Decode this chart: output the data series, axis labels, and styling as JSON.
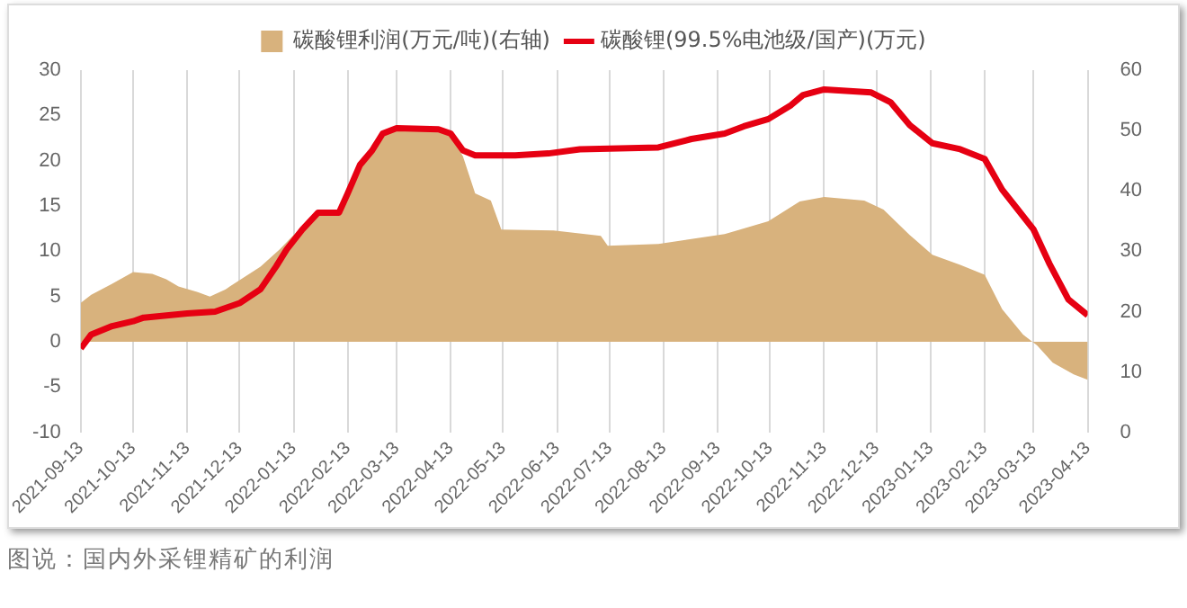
{
  "chart_data": {
    "type": "line",
    "xlim": [
      "2021-09-13",
      "2023-04-13"
    ],
    "xticks": [
      "2021-09-13",
      "2021-10-13",
      "2021-11-13",
      "2021-12-13",
      "2022-01-13",
      "2022-02-13",
      "2022-03-13",
      "2022-04-13",
      "2022-05-13",
      "2022-06-13",
      "2022-07-13",
      "2022-08-13",
      "2022-09-13",
      "2022-10-13",
      "2022-11-13",
      "2022-12-13",
      "2023-01-13",
      "2023-02-13",
      "2023-03-13",
      "2023-04-13"
    ],
    "ylim": [
      -10,
      30
    ],
    "yticks": [
      -10,
      -5,
      0,
      5,
      10,
      15,
      20,
      25,
      30
    ],
    "y2lim": [
      0,
      60
    ],
    "y2ticks": [
      0,
      10,
      20,
      30,
      40,
      50,
      60
    ],
    "grid": "x",
    "legend": "top",
    "series": [
      {
        "name": "碳酸锂利润(万元/吨)(右轴)",
        "type": "area",
        "color": "#d8b27d",
        "x": [
          "2021-09-13",
          "2021-09-19",
          "2021-10-01",
          "2021-10-13",
          "2021-10-24",
          "2021-11-01",
          "2021-11-08",
          "2021-11-19",
          "2021-11-26",
          "2021-12-05",
          "2021-12-13",
          "2021-12-25",
          "2022-01-05",
          "2022-01-16",
          "2022-01-27",
          "2022-02-08",
          "2022-02-13",
          "2022-02-20",
          "2022-02-27",
          "2022-03-05",
          "2022-03-13",
          "2022-04-06",
          "2022-04-13",
          "2022-04-20",
          "2022-04-27",
          "2022-05-06",
          "2022-05-12",
          "2022-06-11",
          "2022-07-08",
          "2022-07-12",
          "2022-08-10",
          "2022-09-17",
          "2022-10-12",
          "2022-10-30",
          "2022-11-13",
          "2022-12-06",
          "2022-12-17",
          "2023-01-01",
          "2023-01-14",
          "2023-01-30",
          "2023-02-13",
          "2023-02-23",
          "2023-03-07",
          "2023-03-15",
          "2023-03-24",
          "2023-04-05",
          "2023-04-13"
        ],
        "values": [
          4.3,
          5.2,
          6.4,
          7.7,
          7.5,
          6.9,
          6.1,
          5.5,
          5.0,
          5.8,
          6.8,
          8.3,
          10.2,
          12.4,
          13.9,
          14.6,
          16.1,
          19.3,
          21.8,
          23.3,
          23.9,
          23.6,
          22.7,
          20.5,
          16.4,
          15.6,
          12.4,
          12.3,
          11.7,
          10.6,
          10.8,
          11.9,
          13.3,
          15.5,
          16.0,
          15.6,
          14.6,
          11.8,
          9.6,
          8.5,
          7.4,
          3.6,
          0.8,
          -0.4,
          -2.3,
          -3.6,
          -4.2
        ]
      },
      {
        "name": "碳酸锂(99.5%电池级/国产)(万元)",
        "type": "line",
        "axis": "y2",
        "color": "#e60012",
        "x": [
          "2021-09-13",
          "2021-09-19",
          "2021-10-01",
          "2021-10-13",
          "2021-10-19",
          "2021-11-13",
          "2021-11-29",
          "2021-12-13",
          "2021-12-25",
          "2022-01-03",
          "2022-01-09",
          "2022-01-18",
          "2022-01-27",
          "2022-02-08",
          "2022-02-13",
          "2022-02-20",
          "2022-02-27",
          "2022-03-05",
          "2022-03-13",
          "2022-04-06",
          "2022-04-13",
          "2022-04-20",
          "2022-04-27",
          "2022-05-20",
          "2022-06-08",
          "2022-06-26",
          "2022-08-10",
          "2022-08-29",
          "2022-09-17",
          "2022-09-28",
          "2022-10-12",
          "2022-10-25",
          "2022-11-01",
          "2022-11-13",
          "2022-12-10",
          "2022-12-21",
          "2023-01-01",
          "2023-01-14",
          "2023-01-30",
          "2023-02-13",
          "2023-02-23",
          "2023-03-04",
          "2023-03-13",
          "2023-03-22",
          "2023-04-02",
          "2023-04-13"
        ],
        "values": [
          13.9,
          16.2,
          17.6,
          18.4,
          19.0,
          19.7,
          20.0,
          21.4,
          23.7,
          27.5,
          30.3,
          33.6,
          36.4,
          36.4,
          39.6,
          44.3,
          46.7,
          49.5,
          50.4,
          50.2,
          49.5,
          46.7,
          45.9,
          45.9,
          46.2,
          46.9,
          47.2,
          48.6,
          49.5,
          50.7,
          51.9,
          54.2,
          55.9,
          56.8,
          56.3,
          54.7,
          50.9,
          47.9,
          46.9,
          45.3,
          40.2,
          36.9,
          33.6,
          28.0,
          22.0,
          19.4
        ]
      }
    ],
    "annotations": [
      "图说：国内外采锂精矿的利润"
    ]
  }
}
